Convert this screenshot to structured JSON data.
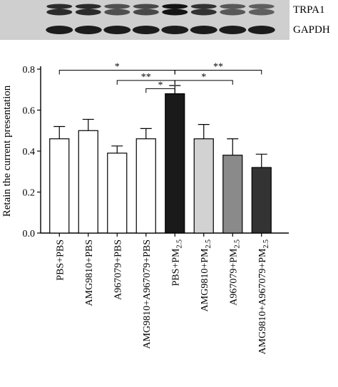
{
  "blot": {
    "rows": [
      {
        "label": "TRPA1",
        "intensity": [
          0.85,
          0.85,
          0.6,
          0.65,
          1.0,
          0.8,
          0.55,
          0.5
        ]
      },
      {
        "label": "GAPDH",
        "intensity": [
          0.95,
          0.95,
          0.95,
          0.95,
          0.95,
          0.95,
          0.95,
          0.95
        ]
      }
    ]
  },
  "chart_data": {
    "type": "bar",
    "ylabel": "Retain the current presentation",
    "ylim": [
      0,
      0.8
    ],
    "yticks": [
      "0.0",
      "0.2",
      "0.4",
      "0.6",
      "0.8"
    ],
    "categories": [
      {
        "main": "PBS+PBS",
        "sub": ""
      },
      {
        "main": "AMG9810+PBS",
        "sub": ""
      },
      {
        "main": "A967079+PBS",
        "sub": ""
      },
      {
        "main": "AMG9810+A967079+PBS",
        "sub": ""
      },
      {
        "main": "PBS+PM",
        "sub": "2.5"
      },
      {
        "main": "AMG9810+PM",
        "sub": "2.5"
      },
      {
        "main": "A967079+PM",
        "sub": "2.5"
      },
      {
        "main": "AMG9810+A967079+PM",
        "sub": "2.5"
      }
    ],
    "values": [
      0.46,
      0.5,
      0.39,
      0.46,
      0.68,
      0.46,
      0.38,
      0.32
    ],
    "errors": [
      0.06,
      0.055,
      0.035,
      0.05,
      0.04,
      0.07,
      0.08,
      0.065
    ],
    "colors": [
      "#ffffff",
      "#ffffff",
      "#ffffff",
      "#ffffff",
      "#1a1a1a",
      "#d2d2d2",
      "#8a8a8a",
      "#333333"
    ],
    "significance": [
      {
        "from": 0,
        "to": 4,
        "label": "*",
        "level": 0.795
      },
      {
        "from": 4,
        "to": 7,
        "label": "**",
        "level": 0.795
      },
      {
        "from": 2,
        "to": 4,
        "label": "**",
        "level": 0.745
      },
      {
        "from": 4,
        "to": 6,
        "label": "*",
        "level": 0.745
      },
      {
        "from": 3,
        "to": 4,
        "label": "*",
        "level": 0.705
      }
    ]
  }
}
